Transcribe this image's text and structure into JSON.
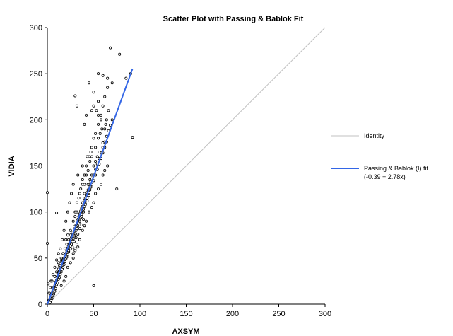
{
  "chart_data": {
    "type": "scatter",
    "title": "Scatter Plot with Passing & Bablok Fit",
    "xlabel": "AXSYM",
    "ylabel": "VIDIA",
    "xlim": [
      0,
      300
    ],
    "ylim": [
      0,
      300
    ],
    "x_ticks": [
      "0",
      "50",
      "100",
      "150",
      "200",
      "250",
      "300"
    ],
    "y_ticks": [
      "0",
      "50",
      "100",
      "150",
      "200",
      "250",
      "300"
    ],
    "grid": false,
    "legend_position": "right",
    "series": [
      {
        "type": "scatter",
        "marker": "open-circle",
        "color": "#000000",
        "points": [
          [
            0,
            121
          ],
          [
            0,
            66
          ],
          [
            1,
            22
          ],
          [
            1,
            3
          ],
          [
            2,
            5
          ],
          [
            2,
            1
          ],
          [
            3,
            7
          ],
          [
            3,
            2
          ],
          [
            4,
            10
          ],
          [
            4,
            4
          ],
          [
            5,
            12
          ],
          [
            5,
            6
          ],
          [
            6,
            15
          ],
          [
            6,
            9
          ],
          [
            7,
            18
          ],
          [
            7,
            11
          ],
          [
            8,
            20
          ],
          [
            8,
            14
          ],
          [
            9,
            24
          ],
          [
            9,
            17
          ],
          [
            10,
            26
          ],
          [
            10,
            21
          ],
          [
            11,
            30
          ],
          [
            11,
            23
          ],
          [
            12,
            33
          ],
          [
            12,
            27
          ],
          [
            13,
            36
          ],
          [
            13,
            29
          ],
          [
            14,
            39
          ],
          [
            14,
            32
          ],
          [
            15,
            41
          ],
          [
            15,
            35
          ],
          [
            16,
            44
          ],
          [
            16,
            38
          ],
          [
            17,
            47
          ],
          [
            17,
            40
          ],
          [
            18,
            50
          ],
          [
            18,
            43
          ],
          [
            19,
            52
          ],
          [
            19,
            46
          ],
          [
            20,
            55
          ],
          [
            20,
            49
          ],
          [
            21,
            58
          ],
          [
            21,
            51
          ],
          [
            22,
            61
          ],
          [
            22,
            54
          ],
          [
            23,
            64
          ],
          [
            23,
            57
          ],
          [
            24,
            66
          ],
          [
            24,
            60
          ],
          [
            25,
            69
          ],
          [
            25,
            63
          ],
          [
            26,
            72
          ],
          [
            26,
            65
          ],
          [
            27,
            75
          ],
          [
            27,
            68
          ],
          [
            28,
            78
          ],
          [
            28,
            71
          ],
          [
            29,
            81
          ],
          [
            29,
            74
          ],
          [
            30,
            83
          ],
          [
            30,
            77
          ],
          [
            31,
            86
          ],
          [
            31,
            80
          ],
          [
            32,
            89
          ],
          [
            32,
            82
          ],
          [
            33,
            92
          ],
          [
            33,
            85
          ],
          [
            34,
            95
          ],
          [
            34,
            88
          ],
          [
            35,
            98
          ],
          [
            35,
            91
          ],
          [
            36,
            101
          ],
          [
            36,
            94
          ],
          [
            37,
            104
          ],
          [
            37,
            97
          ],
          [
            38,
            106
          ],
          [
            38,
            100
          ],
          [
            39,
            109
          ],
          [
            39,
            103
          ],
          [
            40,
            112
          ],
          [
            40,
            106
          ],
          [
            41,
            115
          ],
          [
            41,
            109
          ],
          [
            42,
            118
          ],
          [
            42,
            112
          ],
          [
            43,
            121
          ],
          [
            43,
            115
          ],
          [
            44,
            124
          ],
          [
            44,
            118
          ],
          [
            45,
            127
          ],
          [
            45,
            121
          ],
          [
            46,
            130
          ],
          [
            46,
            124
          ],
          [
            47,
            133
          ],
          [
            47,
            127
          ],
          [
            48,
            136
          ],
          [
            48,
            130
          ],
          [
            50,
            140
          ],
          [
            50,
            134
          ],
          [
            52,
            146
          ],
          [
            52,
            140
          ],
          [
            54,
            152
          ],
          [
            54,
            146
          ],
          [
            56,
            158
          ],
          [
            56,
            152
          ],
          [
            58,
            164
          ],
          [
            58,
            158
          ],
          [
            60,
            170
          ],
          [
            60,
            164
          ],
          [
            62,
            176
          ],
          [
            62,
            170
          ],
          [
            64,
            182
          ],
          [
            64,
            176
          ],
          [
            66,
            188
          ],
          [
            68,
            194
          ],
          [
            70,
            200
          ],
          [
            10,
            99
          ],
          [
            12,
            45
          ],
          [
            15,
            20
          ],
          [
            18,
            25
          ],
          [
            20,
            30
          ],
          [
            22,
            40
          ],
          [
            25,
            45
          ],
          [
            28,
            50
          ],
          [
            30,
            60
          ],
          [
            32,
            65
          ],
          [
            35,
            70
          ],
          [
            38,
            80
          ],
          [
            40,
            85
          ],
          [
            42,
            90
          ],
          [
            45,
            100
          ],
          [
            48,
            105
          ],
          [
            50,
            110
          ],
          [
            52,
            120
          ],
          [
            55,
            125
          ],
          [
            58,
            130
          ],
          [
            60,
            140
          ],
          [
            62,
            145
          ],
          [
            65,
            150
          ],
          [
            20,
            70
          ],
          [
            22,
            75
          ],
          [
            25,
            80
          ],
          [
            28,
            90
          ],
          [
            30,
            100
          ],
          [
            32,
            110
          ],
          [
            35,
            120
          ],
          [
            38,
            130
          ],
          [
            40,
            140
          ],
          [
            42,
            150
          ],
          [
            45,
            160
          ],
          [
            48,
            170
          ],
          [
            50,
            180
          ],
          [
            52,
            185
          ],
          [
            55,
            195
          ],
          [
            58,
            205
          ],
          [
            60,
            215
          ],
          [
            62,
            225
          ],
          [
            65,
            235
          ],
          [
            45,
            240
          ],
          [
            50,
            230
          ],
          [
            55,
            250
          ],
          [
            60,
            248
          ],
          [
            65,
            245
          ],
          [
            70,
            240
          ],
          [
            75,
            125
          ],
          [
            85,
            245
          ],
          [
            92,
            181
          ],
          [
            68,
            278
          ],
          [
            78,
            271
          ],
          [
            90,
            250
          ],
          [
            40,
            195
          ],
          [
            42,
            205
          ],
          [
            30,
            226
          ],
          [
            32,
            215
          ],
          [
            48,
            210
          ],
          [
            50,
            215
          ],
          [
            53,
            210
          ],
          [
            55,
            205
          ],
          [
            58,
            200
          ],
          [
            62,
            190
          ],
          [
            55,
            180
          ],
          [
            52,
            170
          ],
          [
            47,
            165
          ],
          [
            43,
            160
          ],
          [
            38,
            150
          ],
          [
            33,
            140
          ],
          [
            28,
            130
          ],
          [
            26,
            120
          ],
          [
            24,
            110
          ],
          [
            22,
            100
          ],
          [
            20,
            90
          ],
          [
            18,
            80
          ],
          [
            16,
            70
          ],
          [
            14,
            60
          ],
          [
            12,
            55
          ],
          [
            10,
            48
          ],
          [
            8,
            40
          ],
          [
            6,
            32
          ],
          [
            4,
            25
          ],
          [
            3,
            18
          ],
          [
            2,
            12
          ],
          [
            30,
            95
          ],
          [
            32,
            100
          ],
          [
            34,
            115
          ],
          [
            36,
            125
          ],
          [
            38,
            135
          ],
          [
            40,
            130
          ],
          [
            42,
            140
          ],
          [
            44,
            145
          ],
          [
            46,
            155
          ],
          [
            48,
            160
          ],
          [
            35,
            90
          ],
          [
            37,
            95
          ],
          [
            39,
            100
          ],
          [
            41,
            108
          ],
          [
            43,
            112
          ],
          [
            45,
            118
          ],
          [
            25,
            60
          ],
          [
            27,
            62
          ],
          [
            29,
            68
          ],
          [
            31,
            72
          ],
          [
            33,
            76
          ],
          [
            35,
            82
          ],
          [
            37,
            86
          ],
          [
            39,
            92
          ],
          [
            15,
            50
          ],
          [
            17,
            55
          ],
          [
            19,
            60
          ],
          [
            21,
            65
          ],
          [
            23,
            70
          ],
          [
            25,
            75
          ],
          [
            27,
            78
          ],
          [
            29,
            84
          ],
          [
            13,
            42
          ],
          [
            15,
            46
          ],
          [
            17,
            48
          ],
          [
            19,
            52
          ],
          [
            21,
            56
          ],
          [
            23,
            58
          ],
          [
            38,
            110
          ],
          [
            40,
            120
          ],
          [
            44,
            130
          ],
          [
            46,
            135
          ],
          [
            48,
            140
          ],
          [
            50,
            150
          ],
          [
            52,
            155
          ],
          [
            54,
            160
          ],
          [
            56,
            165
          ],
          [
            60,
            175
          ],
          [
            55,
            220
          ],
          [
            57,
            185
          ],
          [
            59,
            190
          ],
          [
            63,
            195
          ],
          [
            64,
            200
          ],
          [
            66,
            210
          ],
          [
            50,
            20
          ],
          [
            5,
            25
          ],
          [
            8,
            30
          ],
          [
            10,
            35
          ],
          [
            12,
            38
          ],
          [
            14,
            42
          ],
          [
            16,
            45
          ],
          [
            18,
            48
          ],
          [
            28,
            55
          ],
          [
            30,
            58
          ],
          [
            33,
            62
          ]
        ]
      },
      {
        "type": "line",
        "name": "Identity",
        "color": "#c0c0c0",
        "points": [
          [
            0,
            0
          ],
          [
            300,
            300
          ]
        ]
      },
      {
        "type": "line",
        "name": "Passing & Bablok (I) fit",
        "name_line2": "(-0.39 + 2.78x)",
        "color": "#3366e6",
        "points": [
          [
            0,
            -0.39
          ],
          [
            92,
            255.37
          ]
        ]
      }
    ]
  }
}
